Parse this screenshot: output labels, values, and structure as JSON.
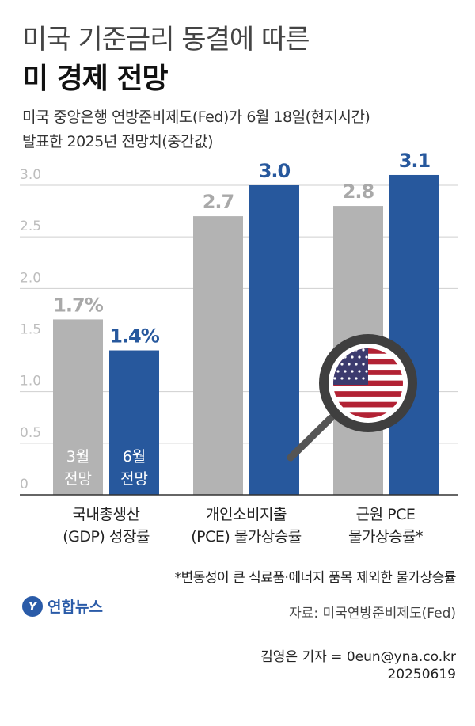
{
  "title": "미국 기준금리 동결에 따른",
  "subtitle": "미 경제 전망",
  "description": [
    "미국 중앙은행 연방준비제도(Fed)가 6월 18일(현지시간)",
    "발표한 2025년 전망치(중간값)"
  ],
  "chart_data": {
    "type": "bar",
    "categories": [
      [
        "국내총생산",
        "(GDP) 성장률"
      ],
      [
        "개인소비지출",
        "(PCE) 물가상승률"
      ],
      [
        "근원 PCE",
        "물가상승률*"
      ]
    ],
    "series": [
      {
        "name": "3월 전망",
        "name_lines": [
          "3월",
          "전망"
        ],
        "values": [
          1.7,
          2.7,
          2.8
        ],
        "labels": [
          "1.7%",
          "2.7",
          "2.8"
        ],
        "color": "#b3b3b3"
      },
      {
        "name": "6월 전망",
        "name_lines": [
          "6월",
          "전망"
        ],
        "values": [
          1.4,
          3.0,
          3.1
        ],
        "labels": [
          "1.4%",
          "3.0",
          "3.1"
        ],
        "color": "#27589d"
      }
    ],
    "yticks": [
      "0",
      "0.5",
      "1.0",
      "1.5",
      "2.0",
      "2.5",
      "3.0"
    ],
    "ylim": [
      0,
      3.0
    ],
    "grid": true
  },
  "note": "*변동성이 큰 식료품·에너지 품목 제외한 물가상승률",
  "source": "자료: 미국연방준비제도(Fed)",
  "logo": "연합뉴스",
  "byline": "김영은 기자 = 0eun@yna.co.kr",
  "date": "20250619",
  "icon": "magnifier-us-flag-icon"
}
